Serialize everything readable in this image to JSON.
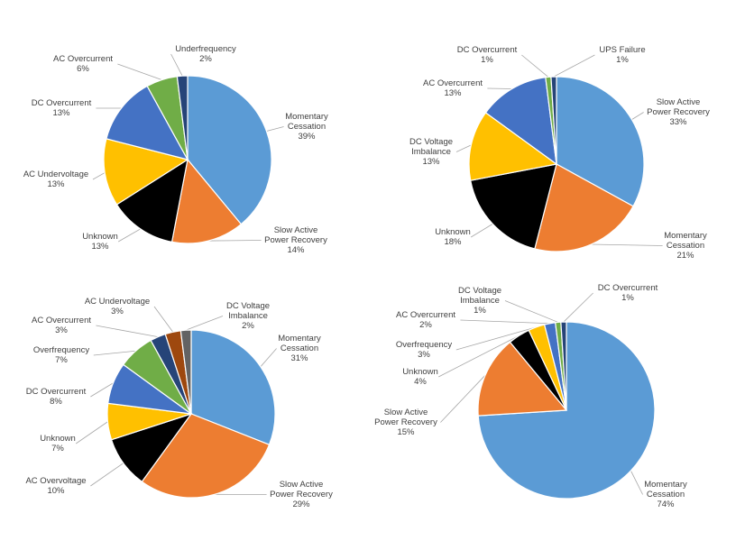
{
  "colors": {
    "blue": "#5B9BD5",
    "orange": "#ED7D31",
    "black": "#000000",
    "yellow": "#FFC000",
    "darkblue": "#4472C4",
    "green": "#70AD47",
    "navy": "#264478",
    "brown": "#9E480E",
    "gray": "#636363"
  },
  "chart_data": [
    {
      "type": "pie",
      "slices": [
        {
          "label": "Momentary Cessation",
          "value": 39,
          "pct": "39%",
          "color": "blue"
        },
        {
          "label": "Slow Active Power Recovery",
          "value": 14,
          "pct": "14%",
          "color": "orange"
        },
        {
          "label": "Unknown",
          "value": 13,
          "pct": "13%",
          "color": "black"
        },
        {
          "label": "AC Undervoltage",
          "value": 13,
          "pct": "13%",
          "color": "yellow"
        },
        {
          "label": "DC Overcurrent",
          "value": 13,
          "pct": "13%",
          "color": "darkblue"
        },
        {
          "label": "AC Overcurrent",
          "value": 6,
          "pct": "6%",
          "color": "green"
        },
        {
          "label": "Underfrequency",
          "value": 2,
          "pct": "2%",
          "color": "navy"
        }
      ]
    },
    {
      "type": "pie",
      "slices": [
        {
          "label": "Slow Active Power Recovery",
          "value": 33,
          "pct": "33%",
          "color": "blue"
        },
        {
          "label": "Momentary Cessation",
          "value": 21,
          "pct": "21%",
          "color": "orange"
        },
        {
          "label": "Unknown",
          "value": 18,
          "pct": "18%",
          "color": "black"
        },
        {
          "label": "DC Voltage Imbalance",
          "value": 13,
          "pct": "13%",
          "color": "yellow"
        },
        {
          "label": "AC Overcurrent",
          "value": 13,
          "pct": "13%",
          "color": "darkblue"
        },
        {
          "label": "DC Overcurrent",
          "value": 1,
          "pct": "1%",
          "color": "green"
        },
        {
          "label": "UPS Failure",
          "value": 1,
          "pct": "1%",
          "color": "navy"
        }
      ]
    },
    {
      "type": "pie",
      "slices": [
        {
          "label": "Momentary Cessation",
          "value": 31,
          "pct": "31%",
          "color": "blue"
        },
        {
          "label": "Slow Active Power Recovery",
          "value": 29,
          "pct": "29%",
          "color": "orange"
        },
        {
          "label": "AC Overvoltage",
          "value": 10,
          "pct": "10%",
          "color": "black"
        },
        {
          "label": "Unknown",
          "value": 7,
          "pct": "7%",
          "color": "yellow"
        },
        {
          "label": "DC Overcurrent",
          "value": 8,
          "pct": "8%",
          "color": "darkblue"
        },
        {
          "label": "Overfrequency",
          "value": 7,
          "pct": "7%",
          "color": "green"
        },
        {
          "label": "AC Overcurrent",
          "value": 3,
          "pct": "3%",
          "color": "navy"
        },
        {
          "label": "AC Undervoltage",
          "value": 3,
          "pct": "3%",
          "color": "brown"
        },
        {
          "label": "DC Voltage Imbalance",
          "value": 2,
          "pct": "2%",
          "color": "gray"
        }
      ]
    },
    {
      "type": "pie",
      "slices": [
        {
          "label": "Momentary Cessation",
          "value": 74,
          "pct": "74%",
          "color": "blue"
        },
        {
          "label": "Slow Active Power Recovery",
          "value": 15,
          "pct": "15%",
          "color": "orange"
        },
        {
          "label": "Unknown",
          "value": 4,
          "pct": "4%",
          "color": "black"
        },
        {
          "label": "Overfrequency",
          "value": 3,
          "pct": "3%",
          "color": "yellow"
        },
        {
          "label": "AC Overcurrent",
          "value": 2,
          "pct": "2%",
          "color": "darkblue"
        },
        {
          "label": "DC Voltage Imbalance",
          "value": 1,
          "pct": "1%",
          "color": "green"
        },
        {
          "label": "DC Overcurrent",
          "value": 1,
          "pct": "1%",
          "color": "navy"
        }
      ]
    }
  ]
}
